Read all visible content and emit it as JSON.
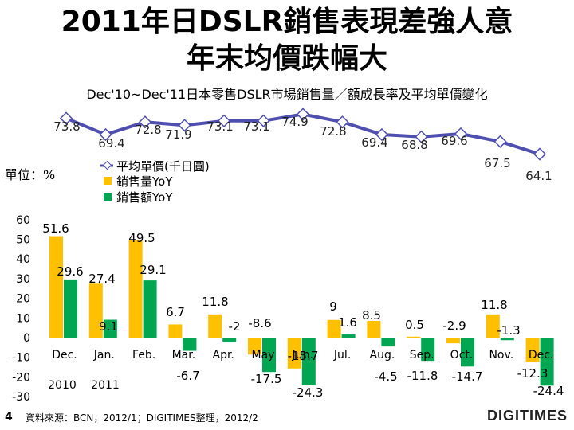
{
  "title_line1": "2011年日DSLR銷售表現差強人意",
  "title_line2": "年末均價跌幅大",
  "subtitle": "Dec'10~Dec'11日本零售DSLR市場銷售量／額成長率及平均單價變化",
  "unit_label": "單位：%",
  "slide_number": "4",
  "source_note": "資料來源：BCN，2012/1；DIGITIMES整理，2012/2",
  "logo_text": "DIGITIMES",
  "chart_data": {
    "type": "bar",
    "categories": [
      "Dec.",
      "Jan.",
      "Feb.",
      "Mar.",
      "Apr.",
      "May",
      "Jun.",
      "Jul.",
      "Aug.",
      "Sep.",
      "Oct.",
      "Nov.",
      "Dec."
    ],
    "year_labels": [
      "2010",
      "2011"
    ],
    "series": [
      {
        "name": "銷售量YoY",
        "color": "#FFC000",
        "values": [
          51.6,
          27.4,
          49.5,
          6.7,
          11.8,
          -8.6,
          -15.7,
          9,
          8.5,
          0.5,
          -2.9,
          11.8,
          -12.3
        ]
      },
      {
        "name": "銷售額YoY",
        "color": "#00A651",
        "values": [
          29.6,
          9.1,
          29.1,
          -6.7,
          -2,
          -17.5,
          -24.3,
          1.6,
          -4.5,
          -11.8,
          -14.7,
          -1.3,
          -24.4
        ]
      }
    ],
    "line": {
      "name": "平均單價(千日圓)",
      "color": "#4F4FB0",
      "values": [
        73.8,
        69.4,
        72.8,
        71.9,
        73.1,
        73.1,
        74.9,
        72.8,
        69.4,
        68.8,
        69.6,
        67.5,
        64.1
      ]
    },
    "y_ticks": [
      "60",
      "50",
      "40",
      "30",
      "20",
      "10",
      "0",
      "-10",
      "-20",
      "-30"
    ],
    "ylim": [
      -30,
      60
    ]
  }
}
